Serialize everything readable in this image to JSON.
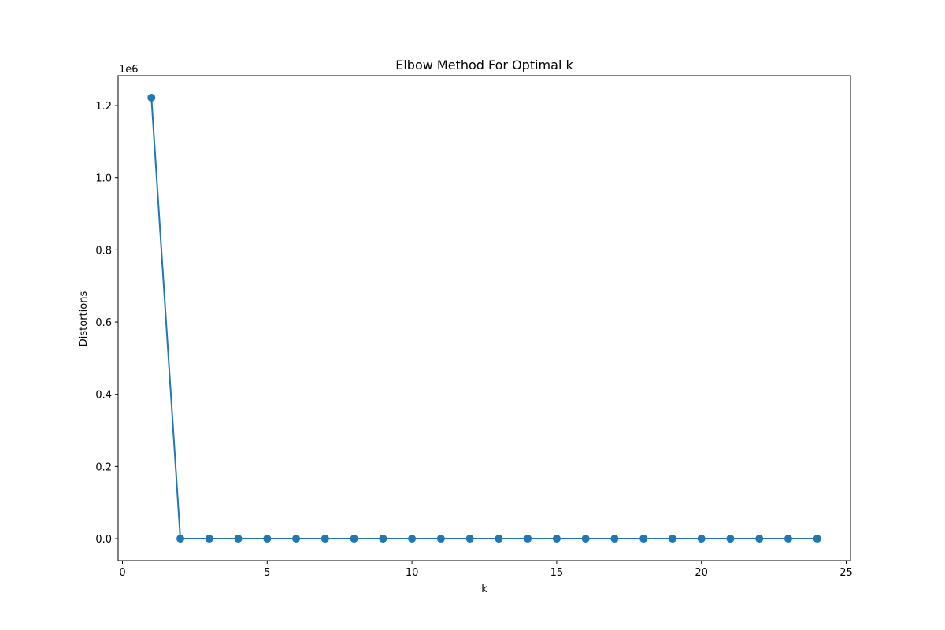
{
  "chart_data": {
    "type": "line",
    "title": "Elbow Method For Optimal k",
    "xlabel": "k",
    "ylabel": "Distortions",
    "y_offset_label": "1e6",
    "xlim": [
      -0.15,
      25.15
    ],
    "ylim": [
      -0.061,
      1.283
    ],
    "x_ticks": [
      0,
      5,
      10,
      15,
      20,
      25
    ],
    "x_tick_labels": [
      "0",
      "5",
      "10",
      "15",
      "20",
      "25"
    ],
    "y_ticks": [
      0.0,
      0.2,
      0.4,
      0.6,
      0.8,
      1.0,
      1.2
    ],
    "y_tick_labels": [
      "0.0",
      "0.2",
      "0.4",
      "0.6",
      "0.8",
      "1.0",
      "1.2"
    ],
    "grid": false,
    "color": "#1f77b4",
    "marker": "o",
    "x": [
      1,
      2,
      3,
      4,
      5,
      6,
      7,
      8,
      9,
      10,
      11,
      12,
      13,
      14,
      15,
      16,
      17,
      18,
      19,
      20,
      21,
      22,
      23,
      24
    ],
    "y": [
      1.222,
      0,
      0,
      0,
      0,
      0,
      0,
      0,
      0,
      0,
      0,
      0,
      0,
      0,
      0,
      0,
      0,
      0,
      0,
      0,
      0,
      0,
      0,
      0
    ]
  }
}
